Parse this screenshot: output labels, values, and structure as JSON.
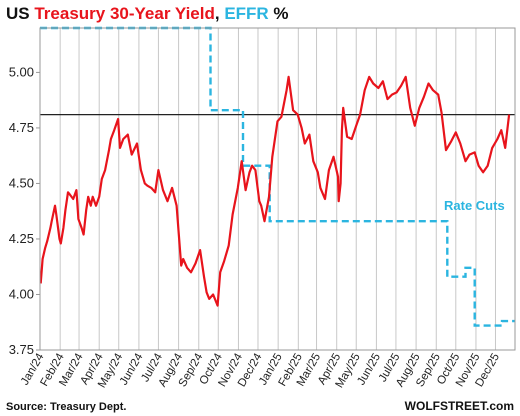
{
  "chart_data": {
    "type": "line",
    "title": {
      "part1": "US ",
      "part2": "Treasury 30-Year Yield",
      "part3": ", ",
      "part4": "EFFR",
      "part5": " %"
    },
    "colors": {
      "treasury": "#e8141c",
      "effr": "#2bb5e0",
      "reference_line": "#222222",
      "grid": "#c8c8c8",
      "title_black": "#111111"
    },
    "ylim": [
      3.75,
      5.2
    ],
    "y_ticks": [
      "3.75",
      "4.00",
      "4.25",
      "4.50",
      "4.75",
      "5.00"
    ],
    "x_ticks": [
      "Jan/24",
      "Feb/24",
      "Mar/24",
      "Apr/24",
      "May/24",
      "Jun/24",
      "Jul/24",
      "Aug/24",
      "Sep/24",
      "Oct/24",
      "Nov/24",
      "Dec/24",
      "Jan/25",
      "Feb/25",
      "Mar/25",
      "Apr/25",
      "May/25",
      "Jun/25",
      "Jul/25",
      "Aug/25",
      "Sep/25",
      "Oct/25",
      "Nov/25",
      "Dec/25"
    ],
    "grid": "vertical",
    "reference_line": 4.81,
    "annotation": "Rate Cuts",
    "source": "Source: Treasury Dept.",
    "brand": "WOLFSTREET.com",
    "series": [
      {
        "name": "Treasury 30-Year Yield",
        "x": [
          "2024-01-02",
          "2024-01-05",
          "2024-01-09",
          "2024-01-12",
          "2024-01-17",
          "2024-01-19",
          "2024-01-24",
          "2024-01-26",
          "2024-01-31",
          "2024-02-02",
          "2024-02-06",
          "2024-02-09",
          "2024-02-13",
          "2024-02-16",
          "2024-02-21",
          "2024-02-26",
          "2024-02-29",
          "2024-03-05",
          "2024-03-08",
          "2024-03-12",
          "2024-03-15",
          "2024-03-19",
          "2024-03-22",
          "2024-03-27",
          "2024-04-01",
          "2024-04-05",
          "2024-04-10",
          "2024-04-16",
          "2024-04-19",
          "2024-04-24",
          "2024-04-30",
          "2024-05-03",
          "2024-05-08",
          "2024-05-15",
          "2024-05-21",
          "2024-05-29",
          "2024-06-04",
          "2024-06-10",
          "2024-06-14",
          "2024-06-20",
          "2024-06-26",
          "2024-07-01",
          "2024-07-08",
          "2024-07-15",
          "2024-07-22",
          "2024-07-29",
          "2024-08-05",
          "2024-08-08",
          "2024-08-14",
          "2024-08-20",
          "2024-08-27",
          "2024-09-03",
          "2024-09-09",
          "2024-09-13",
          "2024-09-17",
          "2024-09-23",
          "2024-09-30",
          "2024-10-04",
          "2024-10-10",
          "2024-10-17",
          "2024-10-23",
          "2024-10-31",
          "2024-11-06",
          "2024-11-12",
          "2024-11-18",
          "2024-11-22",
          "2024-11-27",
          "2024-12-03",
          "2024-12-06",
          "2024-12-11",
          "2024-12-18",
          "2024-12-23",
          "2024-12-31",
          "2025-01-06",
          "2025-01-10",
          "2025-01-14",
          "2025-01-17",
          "2025-01-24",
          "2025-01-31",
          "2025-02-06",
          "2025-02-11",
          "2025-02-18",
          "2025-02-24",
          "2025-03-03",
          "2025-03-07",
          "2025-03-14",
          "2025-03-20",
          "2025-03-27",
          "2025-04-03",
          "2025-04-04",
          "2025-04-07",
          "2025-04-09",
          "2025-04-11",
          "2025-04-17",
          "2025-04-24",
          "2025-05-01",
          "2025-05-07",
          "2025-05-14",
          "2025-05-21",
          "2025-05-27",
          "2025-06-04",
          "2025-06-11",
          "2025-06-18",
          "2025-06-25",
          "2025-07-02",
          "2025-07-09",
          "2025-07-16",
          "2025-07-23",
          "2025-07-30",
          "2025-08-06",
          "2025-08-13",
          "2025-08-20",
          "2025-08-27",
          "2025-09-04",
          "2025-09-09",
          "2025-09-16",
          "2025-09-24",
          "2025-10-01",
          "2025-10-08",
          "2025-10-16",
          "2025-10-22",
          "2025-10-30",
          "2025-11-05",
          "2025-11-12",
          "2025-11-19",
          "2025-11-26",
          "2025-12-04",
          "2025-12-10",
          "2025-12-16",
          "2025-12-22"
        ],
        "values": [
          4.05,
          4.16,
          4.21,
          4.24,
          4.3,
          4.33,
          4.4,
          4.36,
          4.25,
          4.23,
          4.3,
          4.38,
          4.46,
          4.45,
          4.43,
          4.47,
          4.34,
          4.3,
          4.27,
          4.38,
          4.44,
          4.4,
          4.44,
          4.4,
          4.44,
          4.52,
          4.56,
          4.65,
          4.7,
          4.74,
          4.79,
          4.66,
          4.7,
          4.72,
          4.63,
          4.68,
          4.56,
          4.5,
          4.49,
          4.48,
          4.46,
          4.56,
          4.47,
          4.42,
          4.48,
          4.4,
          4.13,
          4.16,
          4.12,
          4.1,
          4.14,
          4.2,
          4.08,
          4.01,
          3.98,
          4.0,
          3.95,
          4.1,
          4.15,
          4.22,
          4.36,
          4.48,
          4.6,
          4.47,
          4.55,
          4.58,
          4.56,
          4.42,
          4.4,
          4.33,
          4.44,
          4.62,
          4.78,
          4.8,
          4.86,
          4.92,
          4.98,
          4.83,
          4.81,
          4.75,
          4.68,
          4.72,
          4.6,
          4.55,
          4.48,
          4.43,
          4.56,
          4.62,
          4.53,
          4.42,
          4.5,
          4.74,
          4.84,
          4.71,
          4.7,
          4.76,
          4.81,
          4.92,
          4.98,
          4.95,
          4.93,
          4.96,
          4.88,
          4.9,
          4.91,
          4.94,
          4.98,
          4.84,
          4.76,
          4.84,
          4.89,
          4.95,
          4.92,
          4.9,
          4.82,
          4.65,
          4.69,
          4.73,
          4.68,
          4.6,
          4.63,
          4.64,
          4.58,
          4.55,
          4.58,
          4.66,
          4.7,
          4.74,
          4.66,
          4.81
        ]
      },
      {
        "name": "EFFR",
        "steps": [
          {
            "x": "2024-01-01",
            "y": 5.33
          },
          {
            "x": "2024-09-19",
            "y": 4.83
          },
          {
            "x": "2024-11-08",
            "y": 4.58
          },
          {
            "x": "2024-12-19",
            "y": 4.33
          },
          {
            "x": "2025-09-18",
            "y": 4.08
          },
          {
            "x": "2025-10-16",
            "y": 4.12
          },
          {
            "x": "2025-10-30",
            "y": 3.86
          },
          {
            "x": "2025-12-11",
            "y": 3.88
          },
          {
            "x": "2025-12-31",
            "y": 3.88
          }
        ]
      }
    ]
  }
}
